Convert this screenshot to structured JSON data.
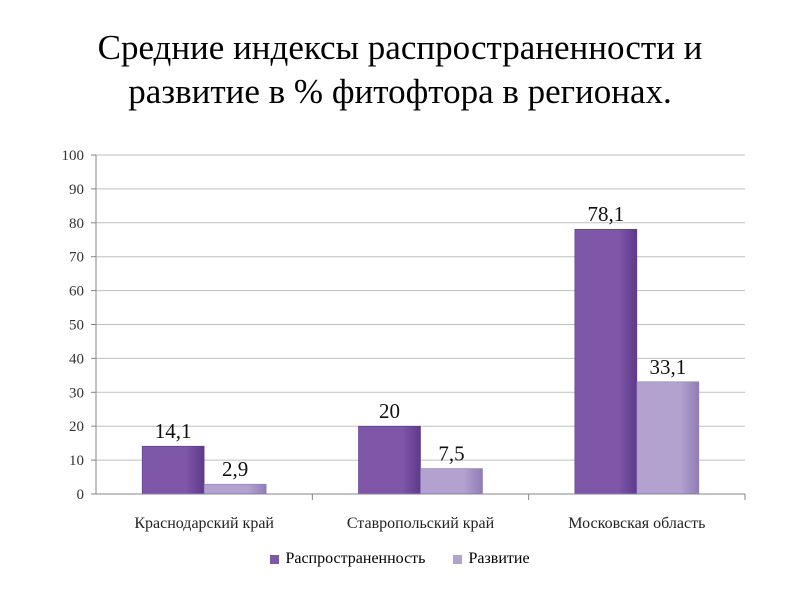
{
  "title": {
    "line1": "Средние индексы распространенности  и",
    "line2": "развитие в % фитофтора в регионах."
  },
  "colors": {
    "series1": "#7E57A8",
    "series1_dark": "#5E3A8C",
    "series2": "#B3A2D0",
    "series2_dark": "#8F7CB6",
    "grid": "#BFBFBF",
    "axis": "#868686"
  },
  "chart_data": {
    "type": "bar",
    "title": "Средние индексы распространенности  и развитие в % фитофтора в регионах.",
    "categories": [
      "Краснодарский край",
      "Ставропольский край",
      "Московская область"
    ],
    "series": [
      {
        "name": "Распространенность",
        "values": [
          14.1,
          20,
          78.1
        ],
        "labels": [
          "14,1",
          "20",
          "78,1"
        ]
      },
      {
        "name": "Развитие",
        "values": [
          2.9,
          7.5,
          33.1
        ],
        "labels": [
          "2,9",
          "7,5",
          "33,1"
        ]
      }
    ],
    "ylim": [
      0,
      100
    ],
    "yticks": [
      0,
      10,
      20,
      30,
      40,
      50,
      60,
      70,
      80,
      90,
      100
    ],
    "grid": true,
    "legend": "bottom"
  }
}
